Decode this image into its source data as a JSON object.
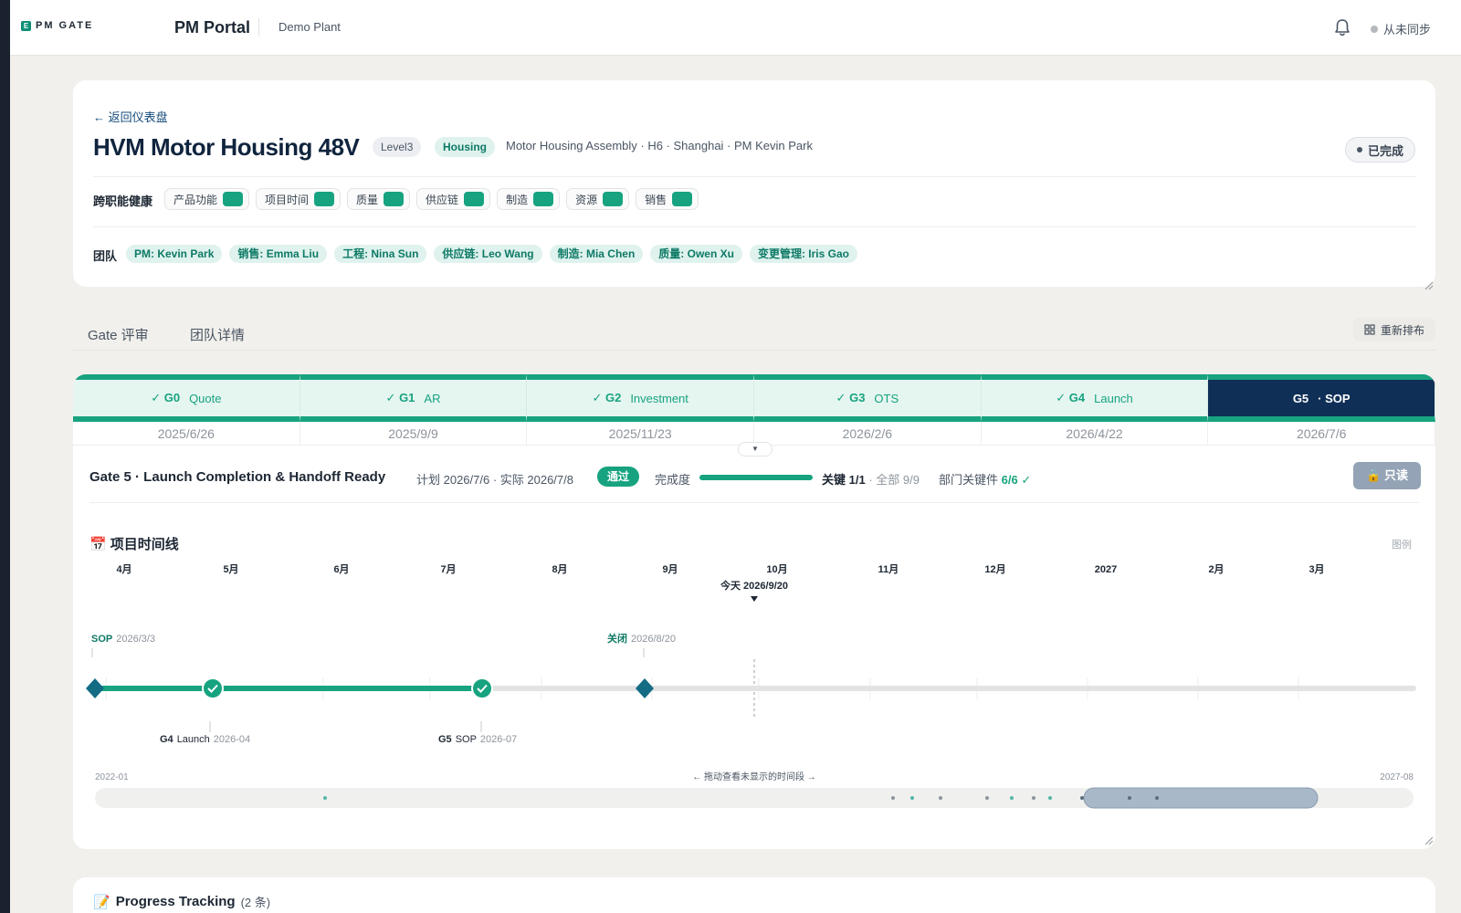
{
  "topbar": {
    "logo_text": "PM GATE",
    "logo_mark": "E",
    "app_title": "PM Portal",
    "plant": "Demo Plant",
    "bell_icon": "bell-icon",
    "sync_status": "从未同步"
  },
  "project": {
    "back_label": "← 返回仪表盘",
    "title": "HVM Motor Housing 48V",
    "level": "Level3",
    "category": "Housing",
    "meta": "Motor Housing Assembly · H6 · Shanghai · PM Kevin Park",
    "status": "已完成",
    "health_label": "跨职能健康",
    "health": [
      {
        "label": "产品功能",
        "color": "#17a37f"
      },
      {
        "label": "项目时间",
        "color": "#17a37f"
      },
      {
        "label": "质量",
        "color": "#17a37f"
      },
      {
        "label": "供应链",
        "color": "#17a37f"
      },
      {
        "label": "制造",
        "color": "#17a37f"
      },
      {
        "label": "资源",
        "color": "#17a37f"
      },
      {
        "label": "销售",
        "color": "#17a37f"
      }
    ],
    "team_label": "团队",
    "team": [
      "PM: Kevin Park",
      "销售: Emma Liu",
      "工程: Nina Sun",
      "供应链: Leo Wang",
      "制造: Mia Chen",
      "质量: Owen Xu",
      "变更管理: Iris Gao"
    ]
  },
  "tabs": {
    "gate_review": "Gate 评审",
    "team_details": "团队详情",
    "rearrange": "重新排布"
  },
  "gates": [
    {
      "check": "✓",
      "code": "G0",
      "name": "Quote",
      "date": "2025/6/26",
      "state": "done"
    },
    {
      "check": "✓",
      "code": "G1",
      "name": "AR",
      "date": "2025/9/9",
      "state": "done"
    },
    {
      "check": "✓",
      "code": "G2",
      "name": "Investment",
      "date": "2025/11/23",
      "state": "done"
    },
    {
      "check": "✓",
      "code": "G3",
      "name": "OTS",
      "date": "2026/2/6",
      "state": "done"
    },
    {
      "check": "✓",
      "code": "G4",
      "name": "Launch",
      "date": "2026/4/22",
      "state": "done"
    },
    {
      "check": "",
      "code": "G5",
      "name": "· SOP",
      "date": "2026/7/6",
      "state": "active"
    }
  ],
  "gate_detail": {
    "title": "Gate 5 · Launch Completion & Handoff Ready",
    "plan_actual": "计划 2026/7/6 · 实际 2026/7/8",
    "pass_label": "通过",
    "completion_label": "完成度",
    "completion_fraction": 1.0,
    "key_label": "关键",
    "key_value": "1/1",
    "all_label": "· 全部 9/9",
    "dept_label": "部门关键件",
    "dept_value": "6/6 ✓",
    "readonly_label": "只读"
  },
  "timeline": {
    "title": "项目时间线",
    "legend_label": "图例",
    "months": [
      "4月",
      "5月",
      "6月",
      "7月",
      "8月",
      "9月",
      "10月",
      "11月",
      "12月",
      "2027",
      "2月",
      "3月"
    ],
    "today_label": "今天 2026/9/20",
    "top_markers": [
      {
        "tag": "SOP",
        "date": "2026/3/3"
      },
      {
        "tag": "关闭",
        "date": "2026/8/20"
      }
    ],
    "bottom_markers": [
      {
        "tag": "G4",
        "name": "Launch",
        "date": "2026-04"
      },
      {
        "tag": "G5",
        "name": "SOP",
        "date": "2026-07"
      }
    ],
    "range_start": "2022-01",
    "range_end": "2027-08",
    "drag_hint": "← 拖动查看未显示的时间段 →"
  },
  "progress": {
    "title": "Progress Tracking",
    "count": "(2 条)"
  }
}
